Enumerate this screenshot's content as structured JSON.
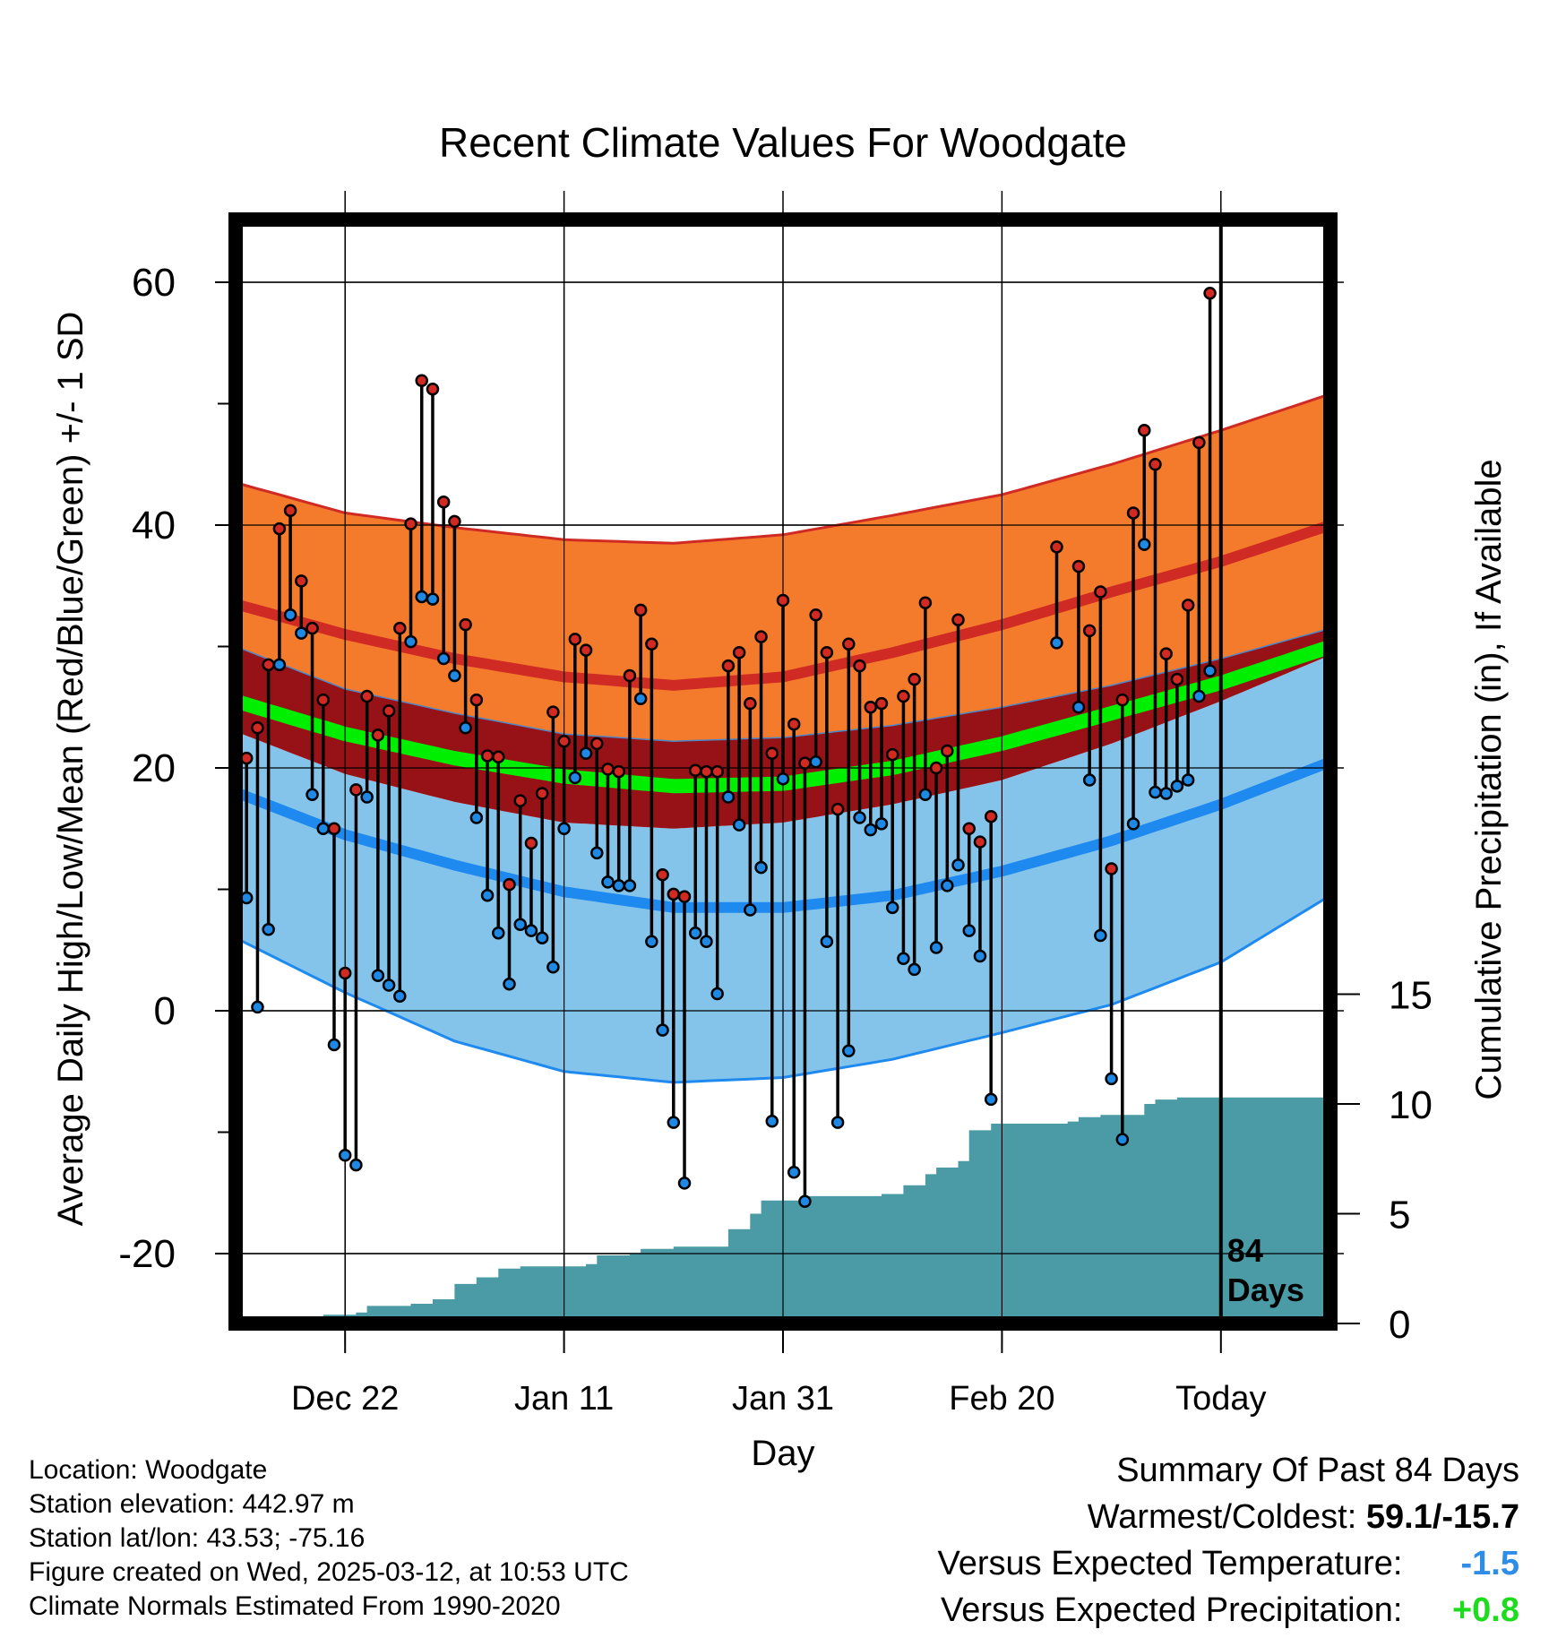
{
  "chart_data": {
    "type": "line",
    "title": "Recent Climate Values For Woodgate",
    "xlabel": "Day",
    "ylabel": "Average Daily High/Low/Mean (Red/Blue/Green) +/- 1 SD",
    "y2label": "Cumulative Precipitation (in), If Available",
    "ylim": [
      -25,
      65
    ],
    "y2lim": [
      0,
      30
    ],
    "xlim": [
      -10,
      90
    ],
    "x_tick_labels": [
      {
        "x": 0,
        "label": "Dec 22"
      },
      {
        "x": 20,
        "label": "Jan 11"
      },
      {
        "x": 40,
        "label": "Jan 31"
      },
      {
        "x": 60,
        "label": "Feb 20"
      },
      {
        "x": 80,
        "label": "Today"
      }
    ],
    "y_ticks": [
      -20,
      0,
      20,
      40,
      60
    ],
    "y2_ticks": [
      0,
      5,
      10,
      15
    ],
    "grid": true,
    "today_marker": {
      "x": 80,
      "label_line1": "84",
      "label_line2": "Days"
    },
    "normals": {
      "day": [
        -10,
        0,
        10,
        20,
        30,
        40,
        50,
        60,
        70,
        80,
        90
      ],
      "high_mean": [
        33.5,
        31.0,
        29.0,
        27.5,
        26.8,
        27.5,
        29.5,
        31.8,
        34.5,
        37.0,
        40.0
      ],
      "high_plus_sd": [
        43.5,
        41.0,
        39.8,
        38.8,
        38.5,
        39.2,
        40.8,
        42.5,
        45.0,
        47.8,
        50.8
      ],
      "high_minus_sd": [
        30.0,
        26.5,
        24.5,
        22.8,
        22.2,
        22.5,
        23.5,
        25.0,
        26.8,
        29.0,
        31.5
      ],
      "mean_mean": [
        25.5,
        22.8,
        20.8,
        19.3,
        18.5,
        18.7,
        20.0,
        22.0,
        24.5,
        27.0,
        30.0
      ],
      "low_mean": [
        18.0,
        14.5,
        12.0,
        9.8,
        8.5,
        8.5,
        9.5,
        11.5,
        14.0,
        17.0,
        20.5
      ],
      "low_plus_sd": [
        23.0,
        19.5,
        17.2,
        15.5,
        15.0,
        15.5,
        17.0,
        19.0,
        22.0,
        25.5,
        29.3
      ],
      "low_minus_sd": [
        6.0,
        1.5,
        -2.5,
        -5.0,
        -5.9,
        -5.5,
        -4.0,
        -1.8,
        0.5,
        4.0,
        9.5
      ],
      "colors": {
        "high_band": "#f47b2c",
        "high_line": "#d02a24",
        "overlap_band": "#971216",
        "mean_line": "#00ee00",
        "low_band": "#85c4ea",
        "low_line": "#1e8af0"
      }
    },
    "daily": [
      {
        "day": -10,
        "high": 30.0,
        "low": 15.0
      },
      {
        "day": -9,
        "high": 20.8,
        "low": 9.3
      },
      {
        "day": -8,
        "high": 23.3,
        "low": 0.3
      },
      {
        "day": -7,
        "high": 28.5,
        "low": 6.7
      },
      {
        "day": -6,
        "high": 39.7,
        "low": 28.5
      },
      {
        "day": -5,
        "high": 41.2,
        "low": 32.6
      },
      {
        "day": -4,
        "high": 35.4,
        "low": 31.1
      },
      {
        "day": -3,
        "high": 31.5,
        "low": 17.8
      },
      {
        "day": -2,
        "high": 25.6,
        "low": 15.0
      },
      {
        "day": -1,
        "high": 15.0,
        "low": -2.8
      },
      {
        "day": 0,
        "high": 3.1,
        "low": -11.9
      },
      {
        "day": 1,
        "high": 18.2,
        "low": -12.7
      },
      {
        "day": 2,
        "high": 25.9,
        "low": 17.6
      },
      {
        "day": 3,
        "high": 22.7,
        "low": 2.9
      },
      {
        "day": 4,
        "high": 24.7,
        "low": 2.1
      },
      {
        "day": 5,
        "high": 31.5,
        "low": 1.2
      },
      {
        "day": 6,
        "high": 40.1,
        "low": 30.4
      },
      {
        "day": 7,
        "high": 51.9,
        "low": 34.1
      },
      {
        "day": 8,
        "high": 51.2,
        "low": 33.9
      },
      {
        "day": 9,
        "high": 41.9,
        "low": 29.0
      },
      {
        "day": 10,
        "high": 40.3,
        "low": 27.6
      },
      {
        "day": 11,
        "high": 31.8,
        "low": 23.3
      },
      {
        "day": 12,
        "high": 25.6,
        "low": 15.9
      },
      {
        "day": 13,
        "high": 21.0,
        "low": 9.5
      },
      {
        "day": 14,
        "high": 20.9,
        "low": 6.4
      },
      {
        "day": 15,
        "high": 10.4,
        "low": 2.2
      },
      {
        "day": 16,
        "high": 17.3,
        "low": 7.1
      },
      {
        "day": 17,
        "high": 13.8,
        "low": 6.6
      },
      {
        "day": 18,
        "high": 17.9,
        "low": 6.0
      },
      {
        "day": 19,
        "high": 24.6,
        "low": 3.6
      },
      {
        "day": 20,
        "high": 22.2,
        "low": 15.0
      },
      {
        "day": 21,
        "high": 30.6,
        "low": 19.2
      },
      {
        "day": 22,
        "high": 29.7,
        "low": 21.2
      },
      {
        "day": 23,
        "high": 22.0,
        "low": 13.0
      },
      {
        "day": 24,
        "high": 19.9,
        "low": 10.6
      },
      {
        "day": 25,
        "high": 19.7,
        "low": 10.3
      },
      {
        "day": 26,
        "high": 27.6,
        "low": 10.3
      },
      {
        "day": 27,
        "high": 33.0,
        "low": 25.7
      },
      {
        "day": 28,
        "high": 30.2,
        "low": 5.7
      },
      {
        "day": 29,
        "high": 11.2,
        "low": -1.6
      },
      {
        "day": 30,
        "high": 9.6,
        "low": -9.2
      },
      {
        "day": 31,
        "high": 9.4,
        "low": -14.2
      },
      {
        "day": 32,
        "high": 19.8,
        "low": 6.4
      },
      {
        "day": 33,
        "high": 19.7,
        "low": 5.7
      },
      {
        "day": 34,
        "high": 19.7,
        "low": 1.4
      },
      {
        "day": 35,
        "high": 28.4,
        "low": 17.6
      },
      {
        "day": 36,
        "high": 29.5,
        "low": 15.3
      },
      {
        "day": 37,
        "high": 25.3,
        "low": 8.3
      },
      {
        "day": 38,
        "high": 30.8,
        "low": 11.8
      },
      {
        "day": 39,
        "high": 21.2,
        "low": -9.1
      },
      {
        "day": 40,
        "high": 33.8,
        "low": 19.1
      },
      {
        "day": 41,
        "high": 23.6,
        "low": -13.3
      },
      {
        "day": 42,
        "high": 20.4,
        "low": -15.7
      },
      {
        "day": 43,
        "high": 32.6,
        "low": 20.5
      },
      {
        "day": 44,
        "high": 29.5,
        "low": 5.7
      },
      {
        "day": 45,
        "high": 16.6,
        "low": -9.2
      },
      {
        "day": 46,
        "high": 30.2,
        "low": -3.3
      },
      {
        "day": 47,
        "high": 28.4,
        "low": 15.9
      },
      {
        "day": 48,
        "high": 25.0,
        "low": 14.9
      },
      {
        "day": 49,
        "high": 25.3,
        "low": 15.4
      },
      {
        "day": 50,
        "high": 21.1,
        "low": 8.5
      },
      {
        "day": 51,
        "high": 25.9,
        "low": 4.3
      },
      {
        "day": 52,
        "high": 27.3,
        "low": 3.4
      },
      {
        "day": 53,
        "high": 33.6,
        "low": 17.8
      },
      {
        "day": 54,
        "high": 20.0,
        "low": 5.2
      },
      {
        "day": 55,
        "high": 21.4,
        "low": 10.3
      },
      {
        "day": 56,
        "high": 32.2,
        "low": 12.0
      },
      {
        "day": 57,
        "high": 15.0,
        "low": 6.6
      },
      {
        "day": 58,
        "high": 13.9,
        "low": 4.5
      },
      {
        "day": 59,
        "high": 16.0,
        "low": -7.3
      },
      {
        "day": 65,
        "high": 38.2,
        "low": 30.3
      },
      {
        "day": 67,
        "high": 36.6,
        "low": 25.0
      },
      {
        "day": 68,
        "high": 31.3,
        "low": 19.0
      },
      {
        "day": 69,
        "high": 34.5,
        "low": 6.2
      },
      {
        "day": 70,
        "high": 11.7,
        "low": -5.6
      },
      {
        "day": 71,
        "high": 25.6,
        "low": -10.6
      },
      {
        "day": 72,
        "high": 41.0,
        "low": 15.4
      },
      {
        "day": 73,
        "high": 47.8,
        "low": 38.4
      },
      {
        "day": 74,
        "high": 45.0,
        "low": 18.0
      },
      {
        "day": 75,
        "high": 29.4,
        "low": 17.9
      },
      {
        "day": 76,
        "high": 27.3,
        "low": 18.5
      },
      {
        "day": 77,
        "high": 33.4,
        "low": 19.0
      },
      {
        "day": 78,
        "high": 46.8,
        "low": 25.9
      },
      {
        "day": 79,
        "high": 59.1,
        "low": 28.0
      }
    ],
    "cumulative_precip": {
      "day": [
        -10,
        -7,
        -5,
        -4,
        -2,
        0,
        1,
        2,
        4,
        6,
        8,
        9,
        10,
        12,
        14,
        16,
        18,
        20,
        22,
        23,
        26,
        27,
        30,
        32,
        34,
        35,
        36,
        37,
        38,
        40,
        42,
        45,
        49,
        51,
        53,
        54,
        56,
        57,
        59,
        66,
        67,
        69,
        72,
        73,
        74,
        76,
        80,
        90
      ],
      "value": [
        0.0,
        0.0,
        0.2,
        0.3,
        0.4,
        0.4,
        0.5,
        0.8,
        0.8,
        0.9,
        1.1,
        1.1,
        1.8,
        2.1,
        2.5,
        2.6,
        2.6,
        2.6,
        2.7,
        3.1,
        3.2,
        3.4,
        3.5,
        3.5,
        3.5,
        4.3,
        4.3,
        5.0,
        5.6,
        5.6,
        5.8,
        5.8,
        5.9,
        6.3,
        6.8,
        7.1,
        7.4,
        8.8,
        9.1,
        9.2,
        9.4,
        9.5,
        9.5,
        10.0,
        10.2,
        10.3,
        10.3,
        10.3
      ]
    },
    "precip_color": "#4a9ba5"
  },
  "info": {
    "location": "Location: Woodgate",
    "elevation": "Station elevation: 442.97 m",
    "latlon": "Station lat/lon: 43.53; -75.16",
    "created": "Figure created on Wed, 2025-03-12, at 10:53 UTC",
    "normals": "Climate Normals Estimated From 1990-2020"
  },
  "summary": {
    "heading": "Summary Of Past 84 Days",
    "warmest_label": "Warmest/Coldest:",
    "warmest_value": "59.1/-15.7",
    "temp_label": "Versus Expected Temperature:",
    "temp_value": "-1.5",
    "temp_color": "#2e8de8",
    "precip_label": "Versus Expected Precipitation:",
    "precip_value": "+0.8",
    "precip_color": "#1ddc1d"
  }
}
